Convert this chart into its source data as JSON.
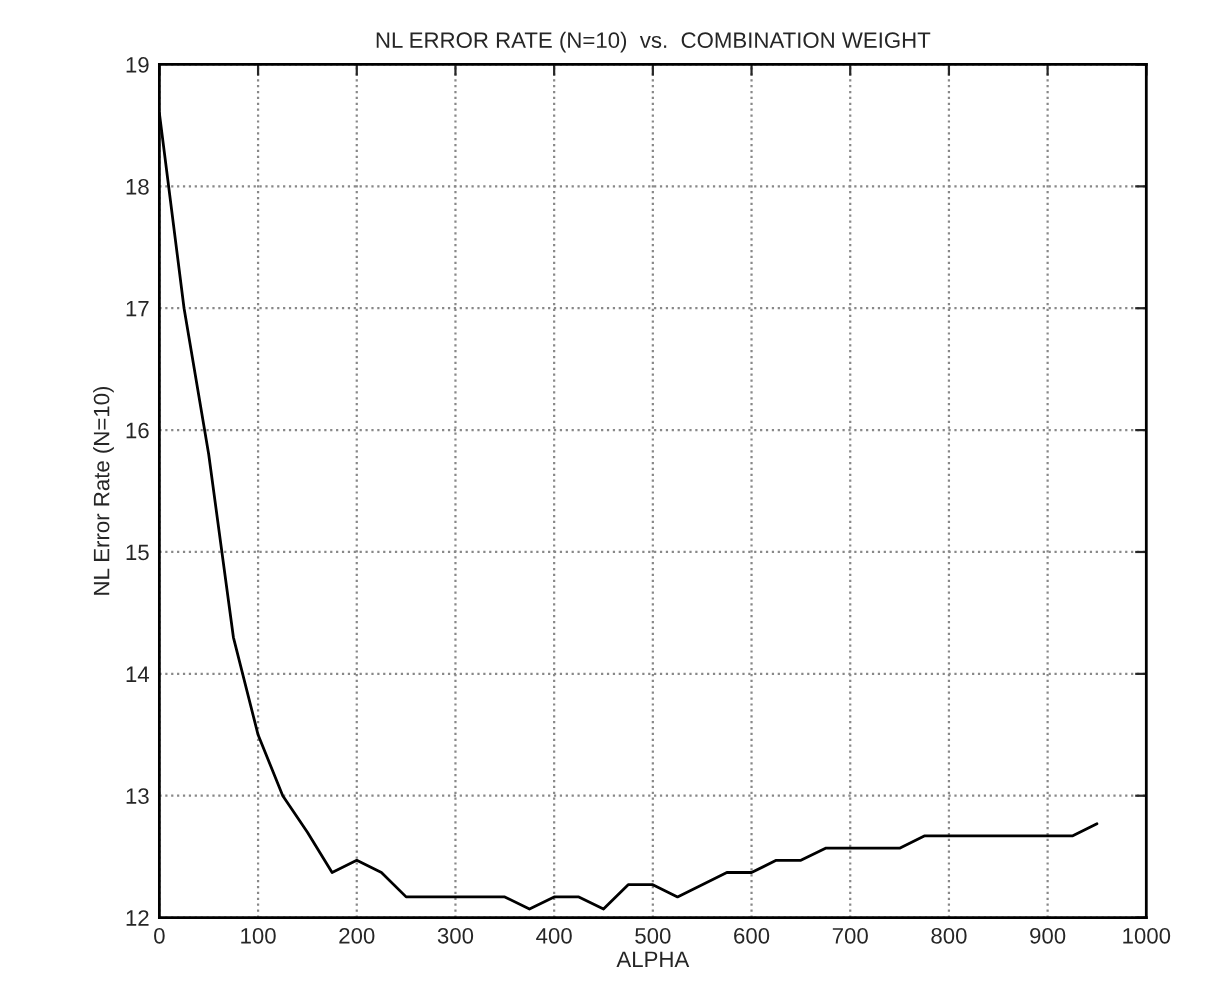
{
  "chart_data": {
    "type": "line",
    "title": "NL ERROR RATE (N=10)  vs.  COMBINATION WEIGHT",
    "xlabel": "ALPHA",
    "ylabel": "NL Error Rate (N=10)",
    "x": [
      0,
      25,
      50,
      75,
      100,
      125,
      150,
      175,
      200,
      225,
      250,
      275,
      300,
      325,
      350,
      375,
      400,
      425,
      450,
      475,
      500,
      525,
      550,
      575,
      600,
      625,
      650,
      675,
      700,
      725,
      750,
      775,
      800,
      825,
      850,
      875,
      900,
      925,
      950
    ],
    "series": [
      {
        "color": "#000000",
        "values": [
          18.6,
          17.0,
          15.8,
          14.3,
          13.5,
          13.0,
          12.7,
          12.37,
          12.47,
          12.37,
          12.17,
          12.17,
          12.17,
          12.17,
          12.17,
          12.07,
          12.17,
          12.17,
          12.07,
          12.27,
          12.27,
          12.17,
          12.27,
          12.37,
          12.37,
          12.47,
          12.47,
          12.57,
          12.57,
          12.57,
          12.57,
          12.67,
          12.67,
          12.67,
          12.67,
          12.67,
          12.67,
          12.67,
          12.77
        ]
      }
    ],
    "xlim": [
      0,
      1000
    ],
    "xticks": [
      0,
      100,
      200,
      300,
      400,
      500,
      600,
      700,
      800,
      900,
      1000
    ],
    "ylim": [
      12,
      19
    ],
    "yticks": [
      12,
      13,
      14,
      15,
      16,
      17,
      18,
      19
    ],
    "grid": true,
    "line_style": "solid"
  }
}
